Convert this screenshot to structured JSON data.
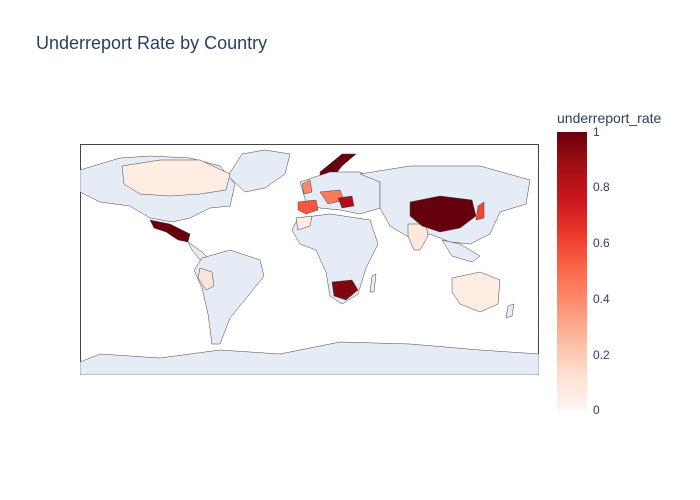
{
  "title": "Underreport Rate by Country",
  "colorbar": {
    "title": "underreport_rate",
    "ticks": [
      "1",
      "0.8",
      "0.6",
      "0.4",
      "0.2",
      "0"
    ],
    "colors": [
      "#fff5f0",
      "#fee0d2",
      "#fcbba1",
      "#fc9272",
      "#fb6a4a",
      "#ef3b2c",
      "#cb181d",
      "#a50f15",
      "#67000d"
    ]
  },
  "map": {
    "projection": "equirectangular",
    "land_color": "#e5ecf6",
    "highlighted_regions": [
      {
        "id": "canada",
        "rate": 0.05
      },
      {
        "id": "mexico",
        "rate": 1.0
      },
      {
        "id": "peru",
        "rate": 0.1
      },
      {
        "id": "norway",
        "rate": 1.0
      },
      {
        "id": "uk",
        "rate": 0.4
      },
      {
        "id": "iberia",
        "rate": 0.55
      },
      {
        "id": "central-europe",
        "rate": 0.45
      },
      {
        "id": "balkans",
        "rate": 0.85
      },
      {
        "id": "morocco",
        "rate": 0.05
      },
      {
        "id": "india",
        "rate": 0.08
      },
      {
        "id": "china",
        "rate": 1.0
      },
      {
        "id": "japan",
        "rate": 0.6
      },
      {
        "id": "australia",
        "rate": 0.05
      },
      {
        "id": "south-africa",
        "rate": 0.95
      }
    ]
  }
}
